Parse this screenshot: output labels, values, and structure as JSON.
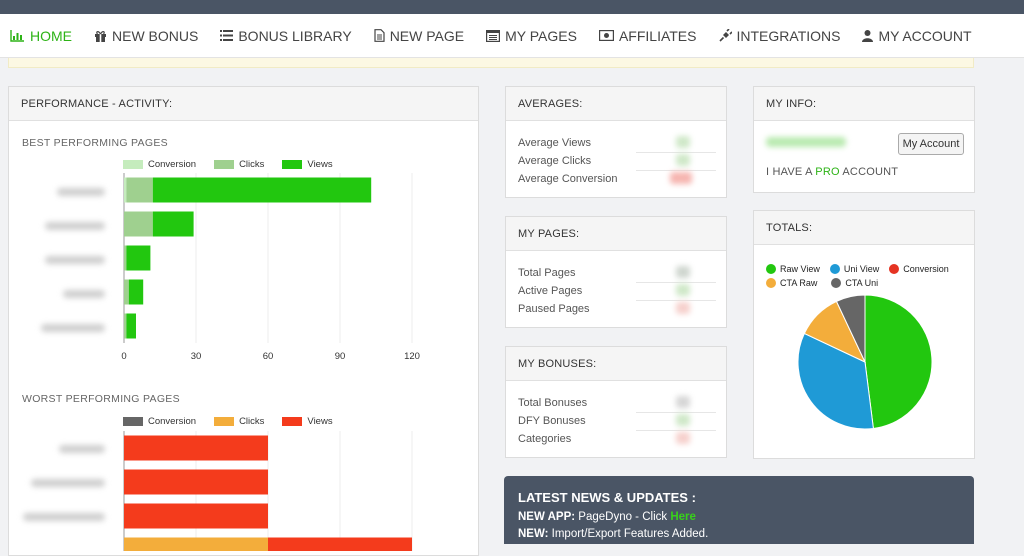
{
  "colors": {
    "accent": "#2db316",
    "views_green": "#22c70f",
    "clicks_green": "#9fd08f",
    "conversion_green": "#c5ecbd",
    "views_red": "#f43b1c",
    "clicks_orange": "#f3ad3b",
    "conversion_gray": "#666666",
    "pie_raw": "#22c70f",
    "pie_uni": "#1f9ad6",
    "pie_conversion": "#e53322",
    "pie_cta_raw": "#f3ad3b",
    "pie_cta_uni": "#666666",
    "news_bg": "#4a5565"
  },
  "nav": {
    "items": [
      {
        "label": "HOME",
        "icon": "bar-chart-icon"
      },
      {
        "label": "NEW BONUS",
        "icon": "gift-icon"
      },
      {
        "label": "BONUS LIBRARY",
        "icon": "list-icon"
      },
      {
        "label": "NEW PAGE",
        "icon": "file-icon"
      },
      {
        "label": "MY PAGES",
        "icon": "window-list-icon"
      },
      {
        "label": "AFFILIATES",
        "icon": "money-icon"
      },
      {
        "label": "INTEGRATIONS",
        "icon": "plug-icon"
      },
      {
        "label": "MY ACCOUNT",
        "icon": "user-icon"
      }
    ]
  },
  "performance": {
    "title": "PERFORMANCE - ACTIVITY:",
    "best_title": "BEST PERFORMING PAGES",
    "worst_title": "WORST PERFORMING PAGES"
  },
  "chart_data": [
    {
      "type": "bar",
      "orientation": "horizontal",
      "stacked": true,
      "title": "BEST PERFORMING PAGES",
      "legend": [
        "Conversion",
        "Clicks",
        "Views"
      ],
      "legend_position": "top",
      "x_ticks": [
        0,
        30,
        60,
        90,
        120
      ],
      "xlim": [
        0,
        120
      ],
      "grid": true,
      "series": [
        {
          "name": "Conversion",
          "values": [
            1,
            0,
            0,
            0,
            0
          ]
        },
        {
          "name": "Clicks",
          "values": [
            11,
            12,
            1,
            2,
            1
          ]
        },
        {
          "name": "Views",
          "values": [
            91,
            17,
            10,
            6,
            4
          ]
        }
      ]
    },
    {
      "type": "bar",
      "orientation": "horizontal",
      "stacked": true,
      "title": "WORST PERFORMING PAGES",
      "legend": [
        "Conversion",
        "Clicks",
        "Views"
      ],
      "legend_position": "top",
      "xlim": [
        0,
        120
      ],
      "grid": true,
      "series": [
        {
          "name": "Conversion",
          "values": [
            0,
            0,
            0,
            0
          ]
        },
        {
          "name": "Clicks",
          "values": [
            0,
            0,
            0,
            60
          ]
        },
        {
          "name": "Views",
          "values": [
            60,
            60,
            60,
            60
          ]
        }
      ]
    },
    {
      "type": "pie",
      "title": "TOTALS:",
      "legend": [
        "Raw View",
        "Uni View",
        "Conversion",
        "CTA Raw",
        "CTA Uni"
      ],
      "legend_position": "top",
      "series": [
        {
          "name": "Raw View",
          "values": [
            48
          ]
        },
        {
          "name": "Uni View",
          "values": [
            34
          ]
        },
        {
          "name": "Conversion",
          "values": [
            0
          ]
        },
        {
          "name": "CTA Raw",
          "values": [
            11
          ]
        },
        {
          "name": "CTA Uni",
          "values": [
            7
          ]
        }
      ]
    }
  ],
  "averages": {
    "title": "AVERAGES:",
    "rows": [
      "Average Views",
      "Average Clicks",
      "Average Conversion"
    ]
  },
  "my_pages": {
    "title": "MY PAGES:",
    "rows": [
      "Total Pages",
      "Active Pages",
      "Paused Pages"
    ]
  },
  "my_bonuses": {
    "title": "MY BONUSES:",
    "rows": [
      "Total Bonuses",
      "DFY Bonuses",
      "Categories"
    ]
  },
  "my_info": {
    "title": "MY INFO:",
    "account_button": "My Account",
    "plan_prefix": "I HAVE A",
    "plan_name": "PRO",
    "plan_suffix": "ACCOUNT"
  },
  "totals": {
    "title": "TOTALS:"
  },
  "news": {
    "title": "LATEST NEWS & UPDATES :",
    "line1_label": "NEW APP:",
    "line1_text": "PageDyno - Click",
    "line1_link": "Here",
    "line2_label": "NEW:",
    "line2_text": "Import/Export Features Added."
  }
}
